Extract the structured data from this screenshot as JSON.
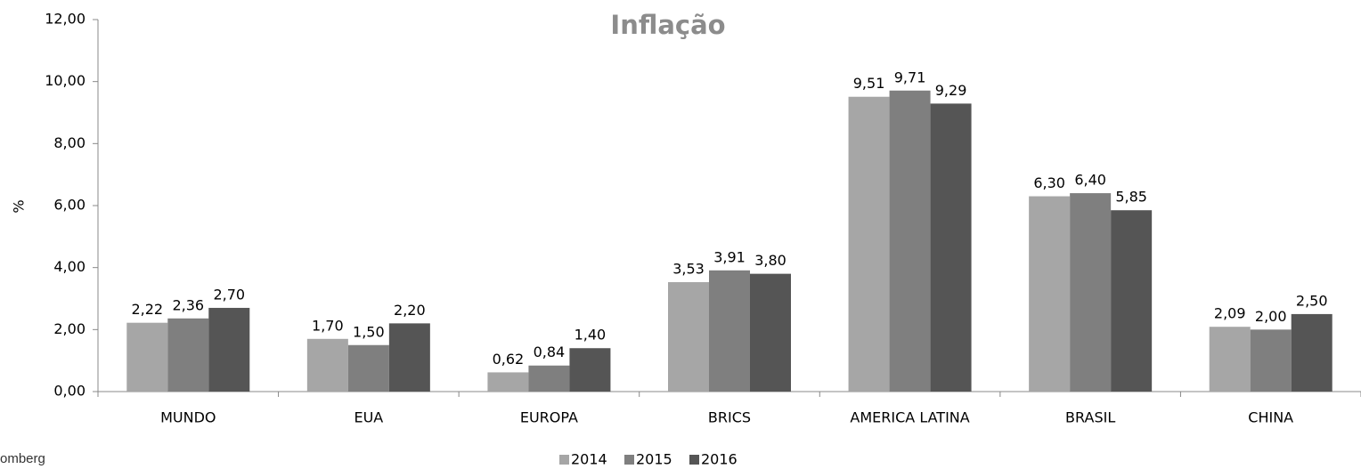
{
  "chart_data": {
    "type": "bar",
    "title": "Inflação",
    "y_label": "%",
    "source": "omberg",
    "categories": [
      "MUNDO",
      "EUA",
      "EUROPA",
      "BRICS",
      "AMERICA LATINA",
      "BRASIL",
      "CHINA"
    ],
    "series": [
      {
        "name": "2014",
        "color": "#a6a6a6",
        "values": [
          2.22,
          1.7,
          0.62,
          3.53,
          9.51,
          6.3,
          2.09
        ],
        "value_labels": [
          "2,22",
          "1,70",
          "0,62",
          "3,53",
          "9,51",
          "6,30",
          "2,09"
        ]
      },
      {
        "name": "2015",
        "color": "#7f7f7f",
        "values": [
          2.36,
          1.5,
          0.84,
          3.91,
          9.71,
          6.4,
          2.0
        ],
        "value_labels": [
          "2,36",
          "1,50",
          "0,84",
          "3,91",
          "9,71",
          "6,40",
          "2,00"
        ]
      },
      {
        "name": "2016",
        "color": "#555555",
        "values": [
          2.7,
          2.2,
          1.4,
          3.8,
          9.29,
          5.85,
          2.5
        ],
        "value_labels": [
          "2,70",
          "2,20",
          "1,40",
          "3,80",
          "9,29",
          "5,85",
          "2,50"
        ]
      }
    ],
    "ylim": [
      0,
      12
    ],
    "yticks": [
      {
        "value": 0,
        "label": "0,00"
      },
      {
        "value": 2,
        "label": "2,00"
      },
      {
        "value": 4,
        "label": "4,00"
      },
      {
        "value": 6,
        "label": "6,00"
      },
      {
        "value": 8,
        "label": "8,00"
      },
      {
        "value": 10,
        "label": "10,00"
      },
      {
        "value": 12,
        "label": "12,00"
      }
    ],
    "grid": false
  }
}
